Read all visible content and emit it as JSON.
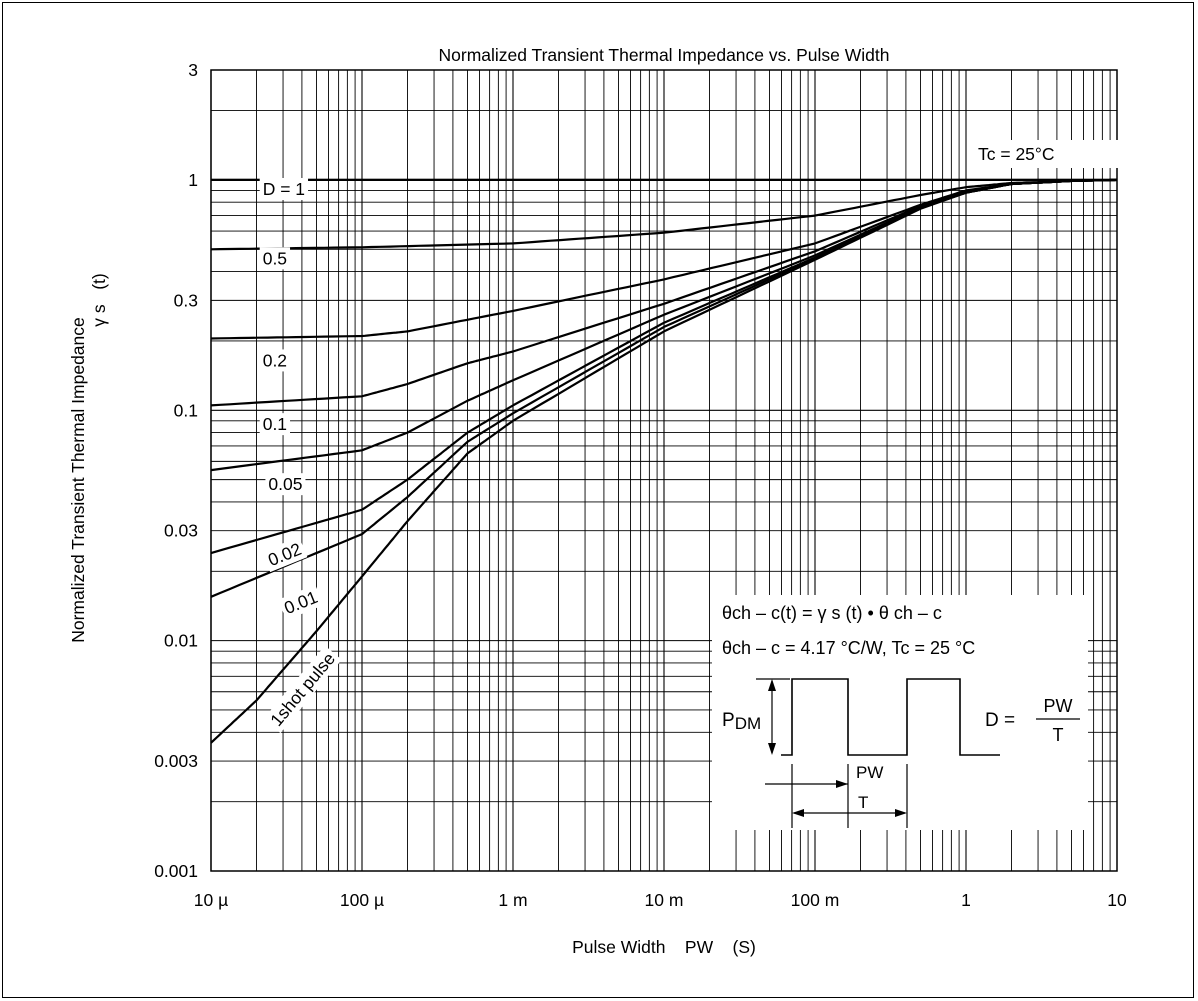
{
  "chart_data": {
    "type": "line",
    "title": "Normalized Transient Thermal Impedance vs. Pulse Width",
    "xlabel": "Pulse Width    PW    (S)",
    "ylabel_line1": "Normalized Transient Thermal Impedance",
    "ylabel_line2": "γ s   (t)",
    "x_scale": "log",
    "y_scale": "log",
    "xlim": [
      1e-05,
      10
    ],
    "ylim": [
      0.001,
      3
    ],
    "grid": true,
    "x_ticks": [
      {
        "value": 1e-05,
        "label": "10 µ"
      },
      {
        "value": 0.0001,
        "label": "100 µ"
      },
      {
        "value": 0.001,
        "label": "1 m"
      },
      {
        "value": 0.01,
        "label": "10 m"
      },
      {
        "value": 0.1,
        "label": "100 m"
      },
      {
        "value": 1,
        "label": "1"
      },
      {
        "value": 10,
        "label": "10"
      }
    ],
    "y_ticks": [
      {
        "value": 0.001,
        "label": "0.001"
      },
      {
        "value": 0.003,
        "label": "0.003"
      },
      {
        "value": 0.01,
        "label": "0.01"
      },
      {
        "value": 0.03,
        "label": "0.03"
      },
      {
        "value": 0.1,
        "label": "0.1"
      },
      {
        "value": 0.3,
        "label": "0.3"
      },
      {
        "value": 1,
        "label": "1"
      },
      {
        "value": 3,
        "label": "3"
      }
    ],
    "series": [
      {
        "name": "D = 1",
        "label_at": [
          2.2e-05,
          0.86
        ],
        "x": [
          1e-05,
          10
        ],
        "y": [
          1.0,
          1.0
        ]
      },
      {
        "name": "0.5",
        "label_at": [
          2.2e-05,
          0.43
        ],
        "x": [
          1e-05,
          0.0001,
          0.001,
          0.01,
          0.1,
          0.5,
          1,
          2,
          5,
          10
        ],
        "y": [
          0.5,
          0.51,
          0.53,
          0.59,
          0.7,
          0.86,
          0.93,
          0.97,
          0.99,
          1.0
        ]
      },
      {
        "name": "0.2",
        "label_at": [
          2.2e-05,
          0.155
        ],
        "x": [
          1e-05,
          0.0001,
          0.0002,
          0.001,
          0.01,
          0.1,
          0.5,
          1,
          2,
          5,
          10
        ],
        "y": [
          0.205,
          0.21,
          0.22,
          0.27,
          0.37,
          0.53,
          0.78,
          0.9,
          0.96,
          0.99,
          1.0
        ]
      },
      {
        "name": "0.1",
        "label_at": [
          2.2e-05,
          0.082
        ],
        "x": [
          1e-05,
          0.0001,
          0.0002,
          0.0005,
          0.001,
          0.01,
          0.1,
          0.5,
          1,
          2,
          5,
          10
        ],
        "y": [
          0.105,
          0.115,
          0.13,
          0.16,
          0.18,
          0.29,
          0.49,
          0.77,
          0.89,
          0.96,
          0.99,
          1.0
        ]
      },
      {
        "name": "0.05",
        "label_at": [
          2.4e-05,
          0.045
        ],
        "x": [
          1e-05,
          0.0001,
          0.0002,
          0.0005,
          0.001,
          0.01,
          0.1,
          0.5,
          1,
          2,
          5,
          10
        ],
        "y": [
          0.055,
          0.067,
          0.08,
          0.11,
          0.135,
          0.26,
          0.47,
          0.76,
          0.89,
          0.96,
          0.99,
          1.0
        ]
      },
      {
        "name": "0.02",
        "label_at": [
          2.5e-05,
          0.021
        ],
        "x": [
          1e-05,
          0.0001,
          0.0002,
          0.0005,
          0.001,
          0.01,
          0.1,
          0.5,
          1,
          2,
          5,
          10
        ],
        "y": [
          0.024,
          0.037,
          0.05,
          0.08,
          0.105,
          0.24,
          0.46,
          0.76,
          0.88,
          0.96,
          0.99,
          1.0
        ]
      },
      {
        "name": "0.01",
        "label_at": [
          3.2e-05,
          0.013
        ],
        "x": [
          1e-05,
          0.0001,
          0.0002,
          0.0005,
          0.001,
          0.01,
          0.1,
          0.5,
          1,
          2,
          5,
          10
        ],
        "y": [
          0.0155,
          0.029,
          0.042,
          0.073,
          0.097,
          0.23,
          0.455,
          0.755,
          0.88,
          0.96,
          0.99,
          1.0
        ]
      },
      {
        "name": "1shot pulse",
        "label_at": [
          2.8e-05,
          0.0042
        ],
        "x": [
          1e-05,
          2e-05,
          5e-05,
          0.0001,
          0.0002,
          0.0005,
          0.001,
          0.01,
          0.1,
          0.5,
          1,
          2,
          5,
          10
        ],
        "y": [
          0.0036,
          0.0055,
          0.011,
          0.019,
          0.033,
          0.065,
          0.09,
          0.22,
          0.45,
          0.75,
          0.88,
          0.96,
          0.99,
          1.0
        ]
      }
    ],
    "annotations": {
      "condition": "Tc = 25°C",
      "formula_line1": "θch – c(t) = γ s (t) • θ ch – c",
      "formula_line2": "θch – c = 4.17 °C/W, Tc = 25 °C",
      "pdm_label_main": "P",
      "pdm_label_sub": "DM",
      "duty_lhs": "D =",
      "duty_num": "PW",
      "duty_den": "T",
      "pw_label": "PW",
      "t_label": "T"
    }
  }
}
